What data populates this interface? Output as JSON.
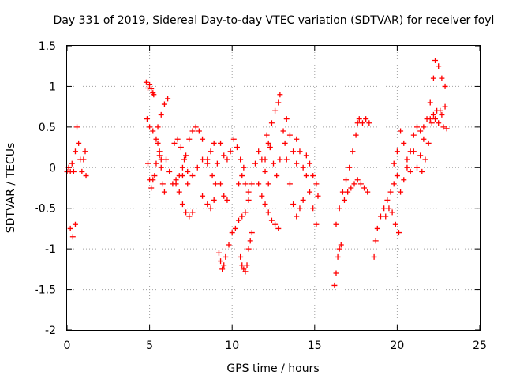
{
  "chart_data": {
    "type": "scatter",
    "title": "Day 331 of 2019, Sidereal Day-to-day VTEC variation (SDTVAR) for receiver foyl",
    "xlabel": "GPS time / hours",
    "ylabel": "SDTVAR / TECUs",
    "xlim": [
      0,
      25
    ],
    "ylim": [
      -2,
      1.5
    ],
    "xticks": [
      "0",
      "5",
      "10",
      "15",
      "20",
      "25"
    ],
    "yticks": [
      "-2",
      "-1.5",
      "-1",
      "-0.5",
      "0",
      "0.5",
      "1",
      "1.5"
    ],
    "grid": true,
    "marker": "plus",
    "color": "#ff0000",
    "traces": [
      [
        [
          0.0,
          -0.05
        ],
        [
          0.1,
          0.0
        ],
        [
          0.2,
          -0.05
        ],
        [
          0.3,
          0.05
        ],
        [
          0.4,
          -0.05
        ],
        [
          0.5,
          0.2
        ],
        [
          0.6,
          0.5
        ],
        [
          0.7,
          0.3
        ],
        [
          0.8,
          0.1
        ],
        [
          0.9,
          -0.05
        ],
        [
          1.0,
          0.1
        ],
        [
          1.1,
          0.2
        ],
        [
          1.15,
          -0.1
        ]
      ],
      [
        [
          0.2,
          -0.75
        ],
        [
          0.35,
          -0.85
        ],
        [
          0.5,
          -0.7
        ]
      ],
      [
        [
          4.8,
          1.05
        ],
        [
          4.9,
          0.98
        ],
        [
          5.0,
          1.02
        ],
        [
          5.1,
          0.97
        ],
        [
          5.2,
          0.92
        ],
        [
          5.25,
          0.9
        ]
      ],
      [
        [
          4.85,
          0.6
        ],
        [
          5.0,
          0.5
        ],
        [
          5.2,
          0.45
        ],
        [
          5.4,
          0.35
        ],
        [
          5.6,
          0.2
        ],
        [
          5.7,
          0.1
        ]
      ],
      [
        [
          4.9,
          0.05
        ],
        [
          5.0,
          -0.15
        ],
        [
          5.1,
          -0.25
        ],
        [
          5.2,
          -0.15
        ],
        [
          5.3,
          -0.1
        ],
        [
          5.4,
          0.05
        ],
        [
          5.5,
          0.3
        ],
        [
          5.6,
          0.15
        ],
        [
          5.7,
          0.0
        ],
        [
          5.8,
          -0.2
        ],
        [
          5.9,
          -0.3
        ]
      ],
      [
        [
          5.5,
          0.5
        ],
        [
          5.7,
          0.65
        ],
        [
          5.9,
          0.78
        ],
        [
          6.1,
          0.85
        ]
      ],
      [
        [
          6.0,
          0.1
        ],
        [
          6.2,
          -0.05
        ],
        [
          6.4,
          -0.2
        ],
        [
          6.6,
          -0.15
        ],
        [
          6.8,
          -0.1
        ],
        [
          7.0,
          0.0
        ],
        [
          7.2,
          0.15
        ],
        [
          7.4,
          0.35
        ],
        [
          7.6,
          0.45
        ],
        [
          7.8,
          0.5
        ],
        [
          8.0,
          0.45
        ],
        [
          8.2,
          0.35
        ]
      ],
      [
        [
          6.5,
          0.3
        ],
        [
          6.7,
          0.35
        ],
        [
          6.9,
          0.25
        ],
        [
          7.1,
          0.1
        ],
        [
          7.3,
          -0.05
        ]
      ],
      [
        [
          6.6,
          -0.2
        ],
        [
          6.8,
          -0.3
        ],
        [
          7.0,
          -0.45
        ],
        [
          7.2,
          -0.55
        ],
        [
          7.4,
          -0.6
        ],
        [
          7.6,
          -0.55
        ]
      ],
      [
        [
          7.0,
          -0.1
        ],
        [
          7.3,
          -0.2
        ],
        [
          7.6,
          -0.1
        ],
        [
          7.9,
          0.0
        ],
        [
          8.2,
          0.1
        ],
        [
          8.5,
          0.05
        ],
        [
          8.8,
          -0.1
        ],
        [
          9.0,
          -0.2
        ]
      ],
      [
        [
          8.2,
          -0.35
        ],
        [
          8.5,
          -0.45
        ],
        [
          8.7,
          -0.5
        ],
        [
          8.9,
          -0.4
        ]
      ],
      [
        [
          8.5,
          0.1
        ],
        [
          8.7,
          0.2
        ],
        [
          8.9,
          0.3
        ],
        [
          9.1,
          0.05
        ],
        [
          9.3,
          -0.2
        ],
        [
          9.5,
          -0.35
        ],
        [
          9.7,
          -0.4
        ]
      ],
      [
        [
          9.3,
          0.3
        ],
        [
          9.5,
          0.15
        ],
        [
          9.7,
          0.1
        ],
        [
          9.9,
          0.2
        ],
        [
          10.1,
          0.35
        ],
        [
          10.3,
          0.25
        ],
        [
          10.5,
          0.1
        ],
        [
          10.7,
          0.0
        ]
      ],
      [
        [
          9.2,
          -1.05
        ],
        [
          9.3,
          -1.15
        ],
        [
          9.4,
          -1.25
        ],
        [
          9.5,
          -1.2
        ],
        [
          9.6,
          -1.1
        ],
        [
          9.8,
          -0.95
        ],
        [
          10.0,
          -0.8
        ],
        [
          10.2,
          -0.75
        ],
        [
          10.4,
          -0.65
        ],
        [
          10.6,
          -0.6
        ],
        [
          10.8,
          -0.55
        ],
        [
          11.0,
          -0.4
        ]
      ],
      [
        [
          10.5,
          -1.1
        ],
        [
          10.6,
          -1.2
        ],
        [
          10.7,
          -1.25
        ],
        [
          10.8,
          -1.28
        ],
        [
          10.9,
          -1.2
        ],
        [
          11.0,
          -1.0
        ],
        [
          11.1,
          -0.9
        ],
        [
          11.2,
          -0.8
        ]
      ],
      [
        [
          10.4,
          -0.2
        ],
        [
          10.6,
          -0.1
        ],
        [
          10.8,
          -0.2
        ],
        [
          11.0,
          -0.3
        ],
        [
          11.2,
          -0.2
        ],
        [
          11.4,
          0.05
        ],
        [
          11.6,
          0.2
        ],
        [
          11.8,
          0.1
        ],
        [
          12.0,
          -0.05
        ],
        [
          12.2,
          -0.2
        ]
      ],
      [
        [
          11.6,
          -0.2
        ],
        [
          11.8,
          -0.35
        ],
        [
          12.0,
          -0.45
        ],
        [
          12.2,
          -0.55
        ],
        [
          12.4,
          -0.65
        ],
        [
          12.6,
          -0.7
        ],
        [
          12.8,
          -0.75
        ]
      ],
      [
        [
          12.0,
          0.1
        ],
        [
          12.2,
          0.3
        ],
        [
          12.4,
          0.55
        ],
        [
          12.6,
          0.7
        ],
        [
          12.8,
          0.8
        ],
        [
          12.9,
          0.9
        ]
      ],
      [
        [
          12.1,
          0.4
        ],
        [
          12.3,
          0.25
        ],
        [
          12.5,
          0.05
        ],
        [
          12.7,
          -0.1
        ],
        [
          12.9,
          0.1
        ],
        [
          13.1,
          0.45
        ],
        [
          13.3,
          0.6
        ],
        [
          13.5,
          0.4
        ],
        [
          13.7,
          0.2
        ],
        [
          13.9,
          0.05
        ]
      ],
      [
        [
          13.2,
          0.3
        ],
        [
          13.3,
          0.1
        ],
        [
          13.5,
          -0.2
        ],
        [
          13.7,
          -0.45
        ],
        [
          13.9,
          -0.6
        ],
        [
          14.1,
          -0.5
        ],
        [
          14.3,
          -0.4
        ]
      ],
      [
        [
          13.9,
          0.35
        ],
        [
          14.1,
          0.2
        ],
        [
          14.3,
          0.0
        ],
        [
          14.5,
          -0.1
        ],
        [
          14.7,
          -0.3
        ],
        [
          14.9,
          -0.5
        ],
        [
          15.1,
          -0.7
        ]
      ],
      [
        [
          14.5,
          0.15
        ],
        [
          14.7,
          0.05
        ],
        [
          14.9,
          -0.1
        ],
        [
          15.1,
          -0.2
        ],
        [
          15.2,
          -0.35
        ]
      ],
      [
        [
          16.2,
          -1.45
        ],
        [
          16.3,
          -1.3
        ],
        [
          16.4,
          -1.1
        ],
        [
          16.5,
          -1.0
        ],
        [
          16.6,
          -0.95
        ]
      ],
      [
        [
          16.3,
          -0.7
        ],
        [
          16.5,
          -0.5
        ],
        [
          16.7,
          -0.3
        ],
        [
          16.9,
          -0.15
        ],
        [
          17.1,
          0.0
        ],
        [
          17.3,
          0.2
        ],
        [
          17.5,
          0.4
        ],
        [
          17.6,
          0.55
        ]
      ],
      [
        [
          16.8,
          -0.4
        ],
        [
          17.0,
          -0.3
        ],
        [
          17.2,
          -0.25
        ],
        [
          17.4,
          -0.2
        ],
        [
          17.6,
          -0.15
        ],
        [
          17.8,
          -0.2
        ],
        [
          18.0,
          -0.25
        ],
        [
          18.2,
          -0.3
        ]
      ],
      [
        [
          17.7,
          0.6
        ],
        [
          17.9,
          0.55
        ],
        [
          18.1,
          0.6
        ],
        [
          18.3,
          0.55
        ]
      ],
      [
        [
          18.6,
          -1.1
        ],
        [
          18.7,
          -0.9
        ],
        [
          18.8,
          -0.75
        ],
        [
          19.0,
          -0.6
        ],
        [
          19.2,
          -0.5
        ],
        [
          19.4,
          -0.4
        ],
        [
          19.6,
          -0.3
        ],
        [
          19.8,
          -0.2
        ],
        [
          20.0,
          -0.1
        ]
      ],
      [
        [
          19.3,
          -0.6
        ],
        [
          19.5,
          -0.5
        ],
        [
          19.7,
          -0.55
        ],
        [
          19.9,
          -0.7
        ],
        [
          20.1,
          -0.8
        ]
      ],
      [
        [
          19.8,
          0.05
        ],
        [
          20.0,
          0.2
        ],
        [
          20.2,
          0.45
        ],
        [
          20.4,
          0.3
        ],
        [
          20.6,
          0.1
        ],
        [
          20.8,
          -0.05
        ]
      ],
      [
        [
          20.2,
          -0.3
        ],
        [
          20.4,
          -0.15
        ],
        [
          20.6,
          0.0
        ],
        [
          20.8,
          0.2
        ],
        [
          21.0,
          0.4
        ],
        [
          21.2,
          0.5
        ],
        [
          21.4,
          0.45
        ],
        [
          21.6,
          0.5
        ]
      ],
      [
        [
          21.0,
          0.2
        ],
        [
          21.2,
          0.0
        ],
        [
          21.4,
          0.15
        ],
        [
          21.6,
          0.35
        ],
        [
          21.8,
          0.6
        ],
        [
          22.0,
          0.8
        ],
        [
          22.2,
          1.1
        ],
        [
          22.3,
          1.32
        ],
        [
          22.5,
          1.25
        ],
        [
          22.7,
          1.1
        ],
        [
          22.9,
          1.0
        ]
      ],
      [
        [
          21.5,
          -0.05
        ],
        [
          21.7,
          0.1
        ],
        [
          21.9,
          0.3
        ],
        [
          22.1,
          0.55
        ],
        [
          22.3,
          0.6
        ],
        [
          22.5,
          0.55
        ],
        [
          22.7,
          0.65
        ],
        [
          22.9,
          0.75
        ]
      ],
      [
        [
          22.0,
          0.6
        ],
        [
          22.2,
          0.65
        ],
        [
          22.4,
          0.7
        ],
        [
          22.6,
          0.7
        ],
        [
          22.8,
          0.5
        ],
        [
          23.0,
          0.48
        ]
      ]
    ]
  }
}
